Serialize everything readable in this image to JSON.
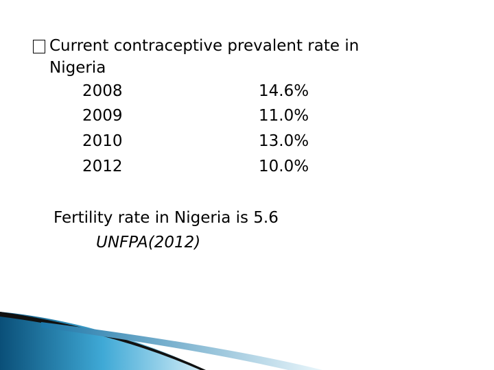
{
  "heading": {
    "line1": "Current contraceptive prevalent rate in",
    "line2": "Nigeria"
  },
  "rates": [
    {
      "year": "2008",
      "rate": "14.6%"
    },
    {
      "year": "2009",
      "rate": "11.0%"
    },
    {
      "year": "2010",
      "rate": "13.0%"
    },
    {
      "year": "2012",
      "rate": "10.0%"
    }
  ],
  "fertility": "Fertility rate in Nigeria  is 5.6",
  "source": "UNFPA(2012)",
  "colors": {
    "accent_dark": "#0a4f78",
    "accent_light": "#3fa9d6"
  }
}
